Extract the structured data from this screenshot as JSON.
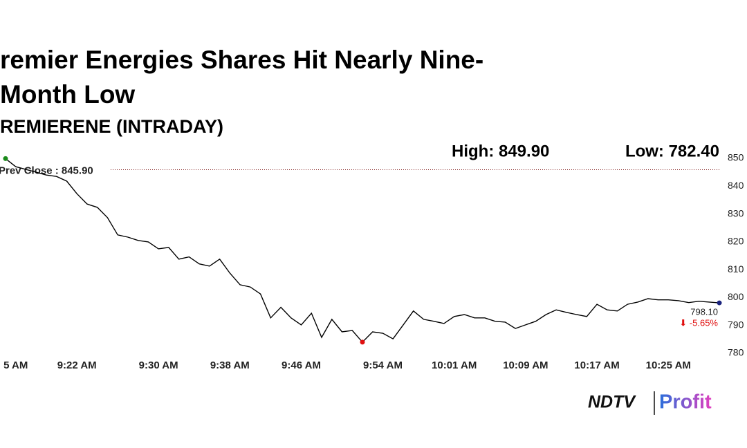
{
  "chart_data": {
    "type": "line",
    "title": "remier Energies Shares Hit Nearly Nine-Month Low",
    "subtitle": "REMIERENE (INTRADAY)",
    "high_label": "High: 849.90",
    "low_label": "Low: 782.40",
    "prev_close": 845.9,
    "prev_close_label": "Prev Close : 845.90",
    "categories": [
      null,
      "5 AM",
      null,
      null,
      null,
      null,
      null,
      "9:22 AM",
      null,
      null,
      null,
      null,
      null,
      null,
      null,
      "9:30 AM",
      null,
      null,
      null,
      null,
      null,
      null,
      "9:38 AM",
      null,
      null,
      null,
      null,
      null,
      null,
      "9:46 AM",
      null,
      null,
      null,
      null,
      null,
      null,
      null,
      "9:54 AM",
      null,
      null,
      null,
      null,
      null,
      null,
      "10:01 AM",
      null,
      null,
      null,
      null,
      null,
      null,
      "10:09 AM",
      null,
      null,
      null,
      null,
      null,
      null,
      "10:17 AM",
      null,
      null,
      null,
      null,
      null,
      null,
      "10:25 AM",
      null,
      null,
      null,
      null,
      null
    ],
    "values": [
      849.9,
      847,
      846,
      845,
      844,
      843.5,
      841.8,
      837.3,
      833.6,
      832.4,
      828.7,
      822.5,
      821.7,
      820.5,
      820,
      817.5,
      818,
      813.8,
      814.6,
      812.1,
      811.3,
      813.8,
      808.8,
      804.6,
      803.8,
      801.3,
      792.7,
      796.5,
      792.7,
      790.2,
      794.4,
      785.7,
      792.2,
      787.7,
      788.2,
      784,
      787.7,
      787.2,
      785.2,
      790.2,
      795.2,
      792.2,
      791.5,
      790.7,
      793.2,
      793.9,
      792.7,
      792.7,
      791.5,
      791.2,
      788.9,
      790.2,
      791.5,
      793.9,
      795.6,
      794.7,
      793.9,
      793.2,
      797.6,
      795.6,
      795.2,
      797.6,
      798.4,
      799.6,
      799.2,
      799.2,
      798.9,
      798.2,
      798.7,
      798.4,
      798.1
    ],
    "last_value_label": "798.10",
    "change_label": "⬇ -5.65%",
    "color": "#000000",
    "high_color": "#1a8a1a",
    "low_color": "#e01010",
    "last_color": "#1a237e",
    "ylim": [
      780,
      850
    ],
    "yticks": [
      780,
      790,
      800,
      810,
      820,
      830,
      840,
      850
    ],
    "brand": "NDTV",
    "brand_sub": "Profit"
  }
}
